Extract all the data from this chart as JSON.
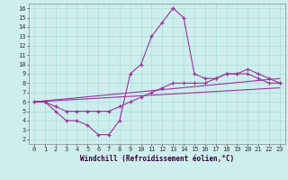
{
  "xlabel": "Windchill (Refroidissement éolien,°C)",
  "bg_color": "#ceeeed",
  "line_color": "#993399",
  "grid_color": "#aadddd",
  "xlim": [
    -0.5,
    23.5
  ],
  "ylim": [
    1.5,
    16.5
  ],
  "xticks": [
    0,
    1,
    2,
    3,
    4,
    5,
    6,
    7,
    8,
    9,
    10,
    11,
    12,
    13,
    14,
    15,
    16,
    17,
    18,
    19,
    20,
    21,
    22,
    23
  ],
  "yticks": [
    2,
    3,
    4,
    5,
    6,
    7,
    8,
    9,
    10,
    11,
    12,
    13,
    14,
    15,
    16
  ],
  "line1_x": [
    0,
    1,
    2,
    3,
    4,
    5,
    6,
    7,
    8,
    9,
    10,
    11,
    12,
    13,
    14,
    15,
    16,
    17,
    18,
    19,
    20,
    21,
    22,
    23
  ],
  "line1_y": [
    6,
    6,
    5,
    4,
    4,
    3.5,
    2.5,
    2.5,
    4,
    9,
    10,
    13,
    14.5,
    16,
    15,
    9,
    8.5,
    8.5,
    9,
    9,
    9.5,
    9,
    8.5,
    8
  ],
  "line2_x": [
    0,
    1,
    2,
    3,
    4,
    5,
    6,
    7,
    8,
    9,
    10,
    11,
    12,
    13,
    14,
    15,
    16,
    17,
    18,
    19,
    20,
    21,
    22,
    23
  ],
  "line2_y": [
    6,
    6,
    5.5,
    5,
    5,
    5,
    5,
    5,
    5.5,
    6,
    6.5,
    7,
    7.5,
    8,
    8,
    8,
    8,
    8.5,
    9,
    9,
    9,
    8.5,
    8,
    8
  ],
  "line3_x": [
    0,
    23
  ],
  "line3_y": [
    6,
    8.5
  ],
  "line4_x": [
    0,
    23
  ],
  "line4_y": [
    6,
    7.5
  ]
}
